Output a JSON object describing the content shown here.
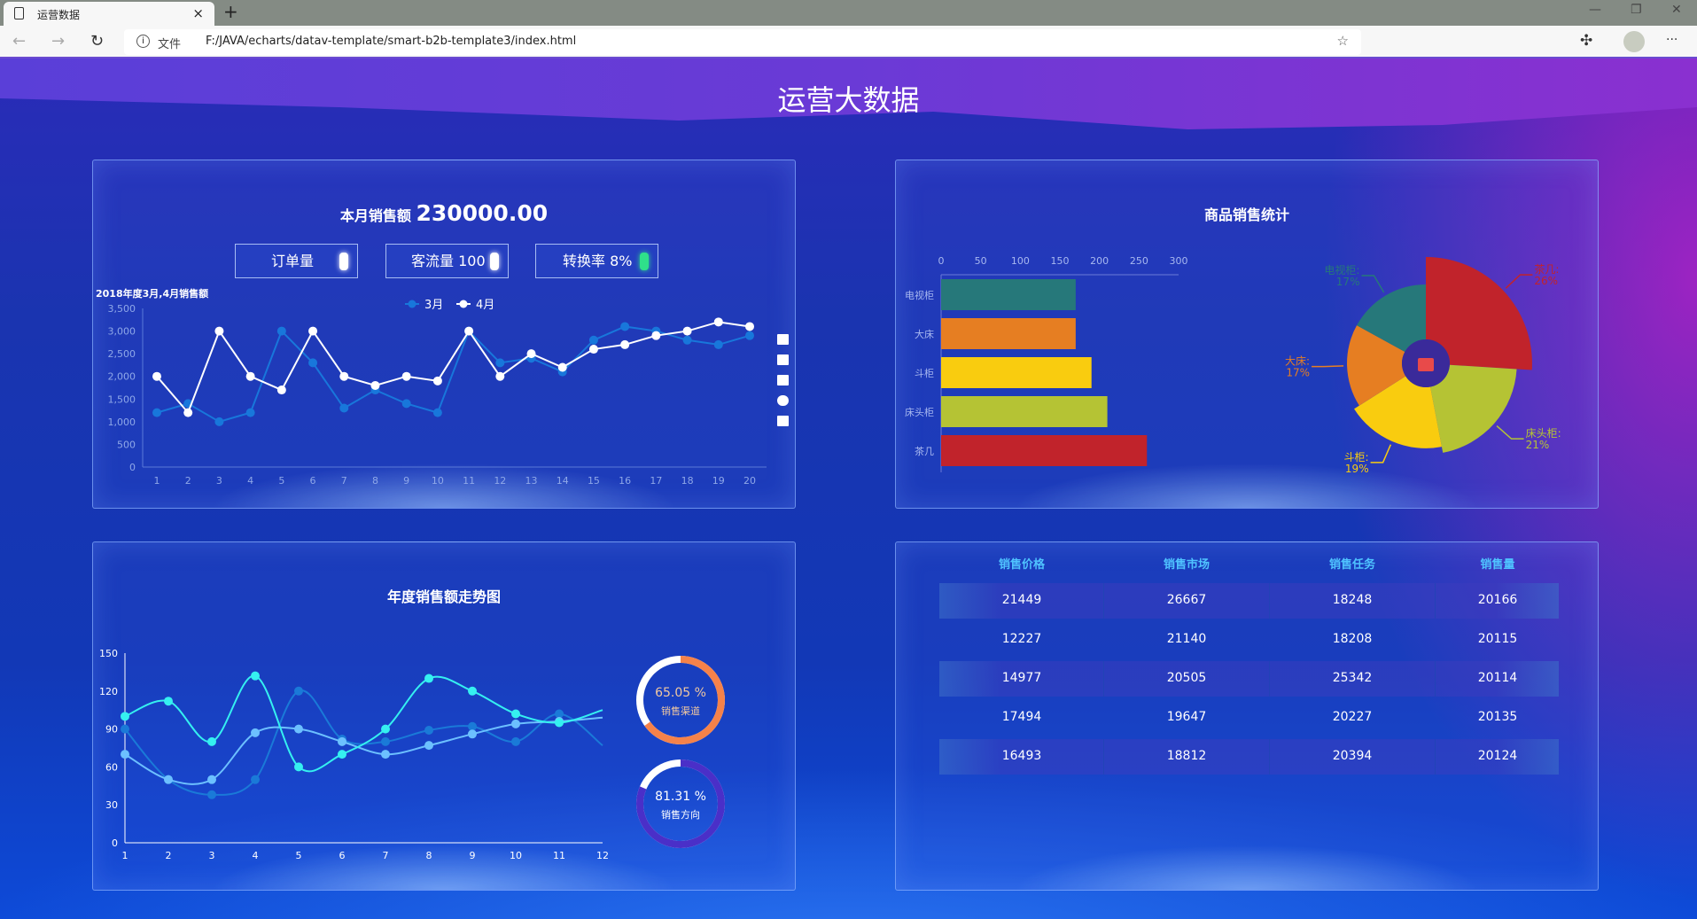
{
  "browser": {
    "tab_title": "运营数据",
    "tab_close": "×",
    "new_tab": "+",
    "address_info": "文件",
    "url": "F:/JAVA/echarts/datav-template/smart-b2b-template3/index.html",
    "back": "←",
    "forward": "→",
    "reload": "↻",
    "minimize": "—",
    "restore": "❐",
    "close": "✕",
    "more": "···",
    "extensions": [
      {
        "name": "ublock",
        "color": "#8b1010"
      },
      {
        "name": "swift",
        "color": "#5a8ef0"
      },
      {
        "name": "youtube",
        "color": "#c0101a"
      },
      {
        "name": "flash",
        "color": "#f58a1f"
      },
      {
        "name": "translate",
        "color": "#f05a5a"
      }
    ]
  },
  "page": {
    "title": "运营大数据"
  },
  "sales_panel": {
    "title_label": "本月销售额",
    "title_value": "230000.00",
    "kpis": [
      {
        "label": "订单量",
        "arrow": "up"
      },
      {
        "label": "客流量 100",
        "arrow": "up"
      },
      {
        "label": "转换率 8%",
        "arrow": "down",
        "color": "#2fe08a"
      }
    ]
  },
  "sales_panel_toolbox": [
    "download-icon",
    "line-chart-icon",
    "bar-chart-icon",
    "stack-icon",
    "tiled-icon"
  ],
  "product_panel": {
    "title": "商品销售统计"
  },
  "trend_panel": {
    "title": "年度销售额走势图",
    "gauges": [
      {
        "value": "65.05 %",
        "label": "销售渠道",
        "fraction": 0.6505,
        "color": "#f5824a",
        "text_color": "#f0c8a0"
      },
      {
        "value": "81.31 %",
        "label": "销售方向",
        "fraction": 0.8131,
        "color": "#4a2fc8",
        "text_color": "#ffffff"
      }
    ]
  },
  "table_panel": {
    "headers": [
      "销售价格",
      "销售市场",
      "销售任务",
      "销售量"
    ],
    "rows": [
      [
        "21449",
        "26667",
        "18248",
        "20166"
      ],
      [
        "12227",
        "21140",
        "18208",
        "20115"
      ],
      [
        "14977",
        "20505",
        "25342",
        "20114"
      ],
      [
        "17494",
        "19647",
        "20227",
        "20135"
      ],
      [
        "16493",
        "18812",
        "20394",
        "20124"
      ]
    ]
  },
  "chart_data": [
    {
      "type": "line",
      "title": "2018年度3月,4月销售额",
      "legend_position": "top",
      "categories": [
        "1",
        "2",
        "3",
        "4",
        "5",
        "6",
        "7",
        "8",
        "9",
        "10",
        "11",
        "12",
        "13",
        "14",
        "15",
        "16",
        "17",
        "18",
        "19",
        "20"
      ],
      "y_ticks": [
        "0",
        "500",
        "1,000",
        "1,500",
        "2,000",
        "2,500",
        "3,000",
        "3,500"
      ],
      "ylim": [
        0,
        3500
      ],
      "series": [
        {
          "name": "3月",
          "color": "#1877db",
          "values": [
            1200,
            1400,
            1000,
            1200,
            3000,
            2300,
            1300,
            1700,
            1400,
            1200,
            3000,
            2300,
            2400,
            2100,
            2800,
            3100,
            3000,
            2800,
            2700,
            2900
          ]
        },
        {
          "name": "4月",
          "color": "#ffffff",
          "values": [
            2000,
            1200,
            3000,
            2000,
            1700,
            3000,
            2000,
            1800,
            2000,
            1900,
            3000,
            2000,
            2500,
            2200,
            2600,
            2700,
            2900,
            3000,
            3200,
            3100
          ]
        }
      ]
    },
    {
      "type": "bar",
      "orientation": "horizontal",
      "categories": [
        "电视柜",
        "大床",
        "斗柜",
        "床头柜",
        "茶几"
      ],
      "values": [
        170,
        170,
        190,
        210,
        260
      ],
      "x_ticks": [
        "0",
        "50",
        "100",
        "150",
        "200",
        "250",
        "300"
      ],
      "xlim": [
        0,
        300
      ],
      "colors": [
        "#26787a",
        "#e67e22",
        "#f9cc0f",
        "#b5c334",
        "#c1232b"
      ]
    },
    {
      "type": "pie",
      "rose": true,
      "slices": [
        {
          "name": "茶几",
          "percent": 26,
          "color": "#c1232b"
        },
        {
          "name": "床头柜",
          "percent": 21,
          "color": "#b5c334"
        },
        {
          "name": "斗柜",
          "percent": 19,
          "color": "#f9cc0f"
        },
        {
          "name": "大床",
          "percent": 17,
          "color": "#e67e22"
        },
        {
          "name": "电视柜",
          "percent": 17,
          "color": "#26787a"
        }
      ]
    },
    {
      "type": "line",
      "smooth": true,
      "categories": [
        "1",
        "2",
        "3",
        "4",
        "5",
        "6",
        "7",
        "8",
        "9",
        "10",
        "11",
        "12"
      ],
      "y_ticks": [
        "0",
        "30",
        "60",
        "90",
        "120",
        "150"
      ],
      "ylim": [
        0,
        150
      ],
      "series": [
        {
          "color": "#1a7ad8",
          "values": [
            90,
            50,
            38,
            50,
            120,
            82,
            80,
            89,
            92,
            80,
            102,
            77
          ]
        },
        {
          "color": "#6cc0ff",
          "values": [
            70,
            50,
            50,
            87,
            90,
            80,
            70,
            77,
            86,
            94,
            96,
            99
          ]
        },
        {
          "color": "#35f0f0",
          "values": [
            100,
            112,
            80,
            132,
            60,
            70,
            90,
            130,
            120,
            102,
            95,
            105
          ]
        }
      ]
    }
  ]
}
